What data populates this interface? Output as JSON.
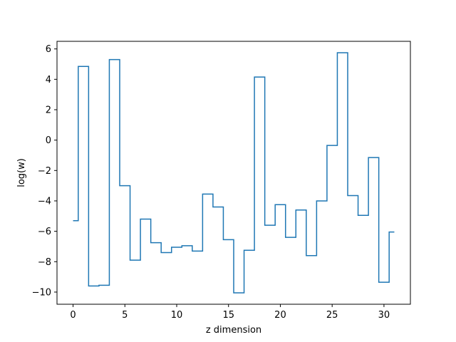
{
  "chart_data": {
    "type": "line",
    "drawstyle": "steps-mid",
    "title": "",
    "xlabel": "z dimension",
    "ylabel": "log(w)",
    "xlim": [
      -1.55,
      32.55
    ],
    "ylim": [
      -10.8,
      6.5
    ],
    "xticks": [
      0,
      5,
      10,
      15,
      20,
      25,
      30
    ],
    "yticks": [
      -10,
      -8,
      -6,
      -4,
      -2,
      0,
      2,
      4,
      6
    ],
    "xtick_labels": [
      "0",
      "5",
      "10",
      "15",
      "20",
      "25",
      "30"
    ],
    "ytick_labels": [
      "−10",
      "−8",
      "−6",
      "−4",
      "−2",
      "0",
      "2",
      "4",
      "6"
    ],
    "line_color": "#1f77b4",
    "grid": false,
    "x": [
      0,
      1,
      2,
      3,
      4,
      5,
      6,
      7,
      8,
      9,
      10,
      11,
      12,
      13,
      14,
      15,
      16,
      17,
      18,
      19,
      20,
      21,
      22,
      23,
      24,
      25,
      26,
      27,
      28,
      29,
      30,
      31
    ],
    "y": [
      -5.3,
      4.85,
      -9.6,
      -9.55,
      5.3,
      -3.0,
      -7.9,
      -5.2,
      -6.75,
      -7.4,
      -7.05,
      -6.95,
      -7.3,
      -3.55,
      -4.4,
      -6.55,
      -10.05,
      -7.25,
      4.15,
      -5.6,
      -4.25,
      -6.4,
      -4.6,
      -7.6,
      -4.0,
      -0.35,
      5.75,
      -3.65,
      -4.95,
      -1.15,
      -9.35,
      -6.05
    ]
  }
}
